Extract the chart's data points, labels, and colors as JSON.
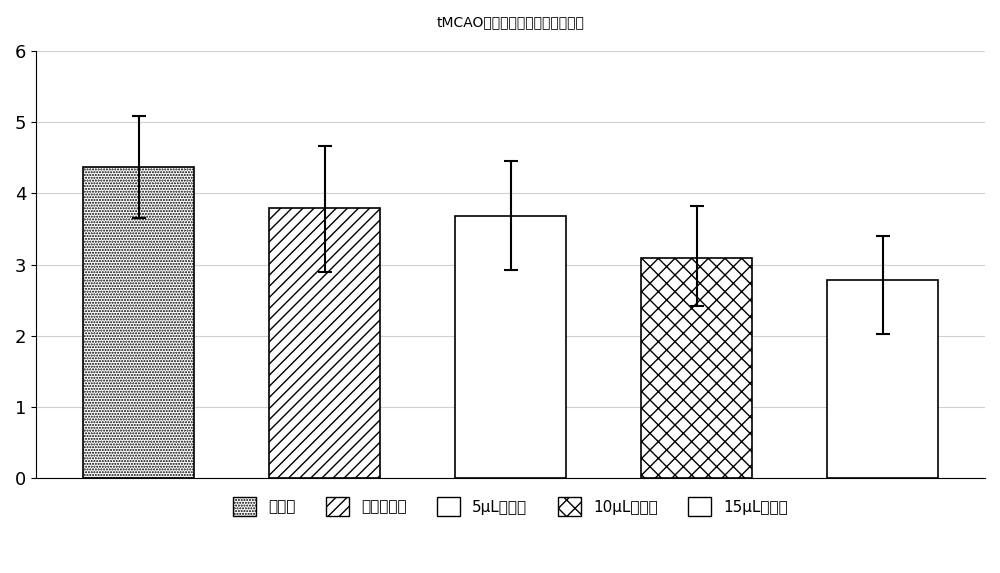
{
  "title": "tMCAO小鼠神经功能障碍评分结果",
  "categories": [
    "模型组",
    "阳性对照组",
    "5μL给药组",
    "10μL给药组",
    "15μL给药组"
  ],
  "values": [
    4.37,
    3.8,
    3.68,
    3.1,
    2.78
  ],
  "errors_upper": [
    0.72,
    0.87,
    0.78,
    0.72,
    0.62
  ],
  "errors_lower": [
    0.72,
    0.9,
    0.75,
    0.68,
    0.75
  ],
  "ylim": [
    0,
    6
  ],
  "yticks": [
    0,
    1,
    2,
    3,
    4,
    5,
    6
  ],
  "bar_width": 0.6,
  "background_color": "#ffffff",
  "bar_edge_color": "#000000",
  "title_fontsize": 22,
  "legend_labels": [
    "模型组",
    "阳性对照组",
    "5μL给药组",
    "10μL给药组",
    "15μL给药组"
  ],
  "legend_fontsize": 11,
  "tick_fontsize": 13,
  "grid_color": "#d0d0d0"
}
